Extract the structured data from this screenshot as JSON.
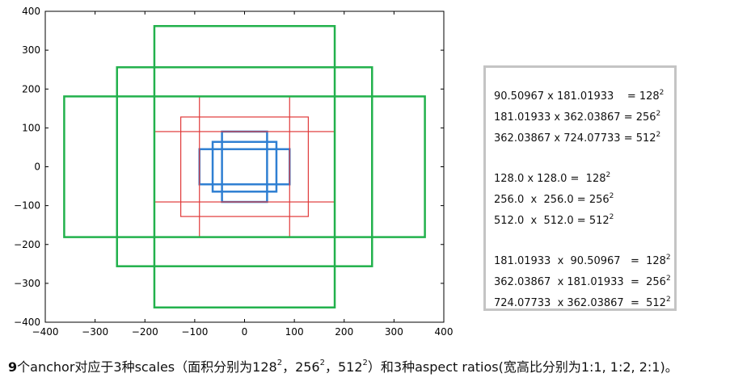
{
  "chart_data": {
    "type": "rectangles",
    "xlim": [
      -400,
      400
    ],
    "ylim": [
      -400,
      400
    ],
    "x_ticks": [
      "−400",
      "−300",
      "−200",
      "−100",
      "0",
      "100",
      "200",
      "300",
      "400"
    ],
    "y_ticks": [
      "400",
      "300",
      "200",
      "100",
      "0",
      "−100",
      "−200",
      "−300",
      "−400"
    ],
    "grid": false,
    "series": [
      {
        "scale": 128,
        "color": "#2f7fd2",
        "rects": [
          {
            "x1": -45.25,
            "y1": -90.51,
            "x2": 45.25,
            "y2": 90.51
          },
          {
            "x1": -64,
            "y1": -64,
            "x2": 64,
            "y2": 64
          },
          {
            "x1": -90.51,
            "y1": -45.25,
            "x2": 90.51,
            "y2": 45.25
          }
        ]
      },
      {
        "scale": 256,
        "color": "#e03a3a",
        "rects": [
          {
            "x1": -90.51,
            "y1": -181.02,
            "x2": 90.51,
            "y2": 181.02
          },
          {
            "x1": -128,
            "y1": -128,
            "x2": 128,
            "y2": 128
          },
          {
            "x1": -181.02,
            "y1": -90.51,
            "x2": 181.02,
            "y2": 90.51
          }
        ]
      },
      {
        "scale": 512,
        "color": "#22b14c",
        "rects": [
          {
            "x1": -181.02,
            "y1": -362.04,
            "x2": 181.02,
            "y2": 362.04
          },
          {
            "x1": -256,
            "y1": -256,
            "x2": 256,
            "y2": 256
          },
          {
            "x1": -362.04,
            "y1": -181.02,
            "x2": 362.04,
            "y2": 181.02
          }
        ]
      }
    ]
  },
  "formulas": {
    "row1": {
      "text": "90.50967 x 181.01933    = 128",
      "exp": "2"
    },
    "row2": {
      "text": "181.01933 x 362.03867 = 256",
      "exp": "2"
    },
    "row3": {
      "text": "362.03867 x 724.07733 = 512",
      "exp": "2"
    },
    "row4": {
      "text": "128.0 x 128.0 =  128",
      "exp": "2"
    },
    "row5": {
      "text": "256.0  x  256.0 = 256",
      "exp": "2"
    },
    "row6": {
      "text": "512.0  x  512.0 = 512",
      "exp": "2"
    },
    "row7": {
      "text": "181.01933  x  90.50967   =  128",
      "exp": "2"
    },
    "row8": {
      "text": "362.03867  x 181.01933  =  256",
      "exp": "2"
    },
    "row9": {
      "text": "724.07733  x 362.03867  =  512",
      "exp": "2"
    }
  },
  "caption": {
    "num": "9",
    "p1": "个anchor对应于3种scales（面积分别为128",
    "s1": "2",
    "p2": "，256",
    "s2": "2",
    "p3": "，512",
    "s3": "2",
    "p4": "）和3种aspect ratios(宽高比分别为1:1, 1:2,  2:1)。"
  }
}
